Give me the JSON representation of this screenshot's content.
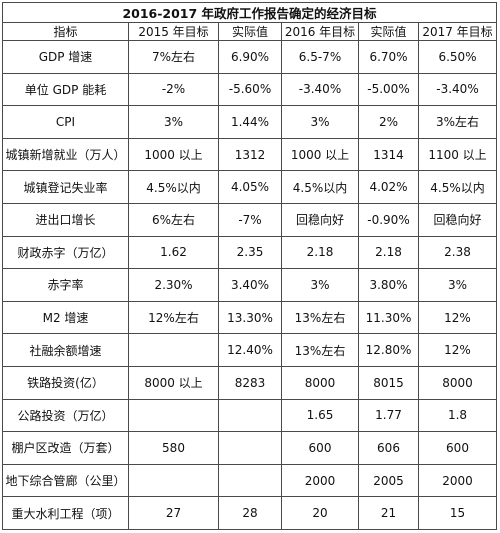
{
  "title": "2016-2017 年政府工作报告确定的经济目标",
  "headers": [
    "指标",
    "2015 年目标",
    "实际值",
    "2016 年目标",
    "实际值",
    "2017 年目标"
  ],
  "rows": [
    [
      "GDP 增速",
      "7%左右",
      "6.90%",
      "6.5-7%",
      "6.70%",
      "6.50%"
    ],
    [
      "单位 GDP 能耗",
      "-2%",
      "-5.60%",
      "-3.40%",
      "-5.00%",
      "-3.40%"
    ],
    [
      "CPI",
      "3%",
      "1.44%",
      "3%",
      "2%",
      "3%左右"
    ],
    [
      "城镇新增就业（万人）",
      "1000 以上",
      "1312",
      "1000  以上",
      "1314",
      "1100  以上"
    ],
    [
      "城镇登记失业率",
      "4.5%以内",
      "4.05%",
      "4.5%以内",
      "4.02%",
      "4.5%以内"
    ],
    [
      "进出口增长",
      "6%左右",
      "-7%",
      "回稳向好",
      "-0.90%",
      "回稳向好"
    ],
    [
      "财政赤字（万亿）",
      "1.62",
      "2.35",
      "2.18",
      "2.18",
      "2.38"
    ],
    [
      "赤字率",
      "2.30%",
      "3.40%",
      "3%",
      "3.80%",
      "3%"
    ],
    [
      "M2 增速",
      "12%左右",
      "13.30%",
      "13%左右",
      "11.30%",
      "12%"
    ],
    [
      "社融余额增速",
      "",
      "12.40%",
      "13%左右",
      "12.80%",
      "12%"
    ],
    [
      "铁路投资(亿）",
      "8000 以上",
      "8283",
      "8000",
      "8015",
      "8000"
    ],
    [
      "公路投资（万亿）",
      "",
      "",
      "1.65",
      "1.77",
      "1.8"
    ],
    [
      "棚户区改造（万套）",
      "580",
      "",
      "600",
      "606",
      "600"
    ],
    [
      "地下综合管廊（公里）",
      "",
      "",
      "2000",
      "2005",
      "2000"
    ],
    [
      "重大水利工程（项）",
      "27",
      "28",
      "20",
      "21",
      "15"
    ]
  ]
}
